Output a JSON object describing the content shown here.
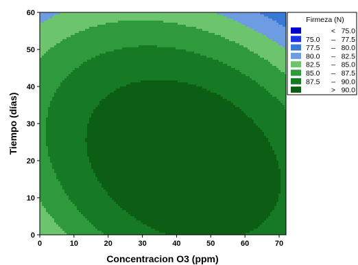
{
  "chart_data": {
    "type": "contour",
    "xlabel": "Concentracion O3 (ppm)",
    "ylabel": "Tiempo (días)",
    "xlim": [
      0,
      72
    ],
    "ylim": [
      0,
      60
    ],
    "x_ticks": [
      "0",
      "10",
      "20",
      "30",
      "40",
      "50",
      "60",
      "70"
    ],
    "y_ticks": [
      "0",
      "10",
      "20",
      "30",
      "40",
      "50",
      "60"
    ],
    "legend": {
      "title": "Firmeza (N)",
      "placement": "top-right",
      "entries": [
        {
          "lo": "",
          "sep": "<",
          "hi": "75.0",
          "color": "#0000cc"
        },
        {
          "lo": "75.0",
          "sep": "–",
          "hi": "77.5",
          "color": "#1a32e6"
        },
        {
          "lo": "77.5",
          "sep": "–",
          "hi": "80.0",
          "color": "#3a78d8"
        },
        {
          "lo": "80.0",
          "sep": "–",
          "hi": "82.5",
          "color": "#6e9ce2"
        },
        {
          "lo": "82.5",
          "sep": "–",
          "hi": "85.0",
          "color": "#6cc46c"
        },
        {
          "lo": "85.0",
          "sep": "–",
          "hi": "87.5",
          "color": "#2e9a3c"
        },
        {
          "lo": "87.5",
          "sep": "–",
          "hi": "90.0",
          "color": "#167a24"
        },
        {
          "lo": "",
          "sep": ">",
          "hi": "90.0",
          "color": "#0b5e14"
        }
      ]
    },
    "contour_model": {
      "center": [
        42,
        20
      ],
      "peak": 92.5,
      "ax2": 0.0033,
      "ay2": 0.0056,
      "axy": 0.0022
    }
  }
}
